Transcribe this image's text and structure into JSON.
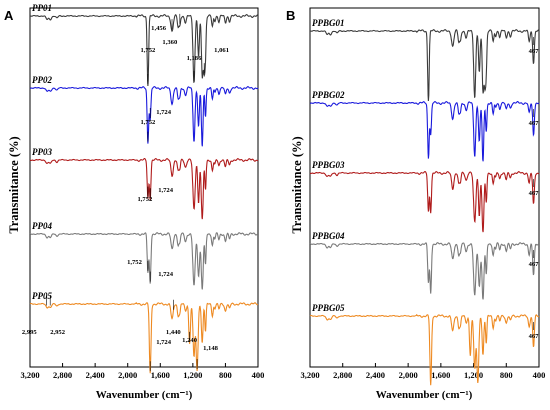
{
  "chart_data": [
    {
      "type": "line",
      "panel": "A",
      "xlabel": "Wavenumber (cm⁻¹)",
      "ylabel": "Transmitance (%)",
      "xlim": [
        3200,
        400
      ],
      "x_reversed": true,
      "x_ticks": [
        "3,200",
        "2,800",
        "2,400",
        "2,000",
        "1,600",
        "1,200",
        "800",
        "400"
      ],
      "grid": false,
      "series": [
        {
          "name": "PP01",
          "color": "#3a3a3a",
          "annotations": [
            {
              "label": "1,456",
              "x": 1456
            },
            {
              "label": "1,360",
              "x": 1360
            },
            {
              "label": "1,752",
              "x": 1752
            },
            {
              "label": "1,186",
              "x": 1186
            },
            {
              "label": "1,061",
              "x": 1061
            }
          ]
        },
        {
          "name": "PP02",
          "color": "#1a1adc",
          "annotations": [
            {
              "label": "1,724",
              "x": 1724
            },
            {
              "label": "1,752",
              "x": 1752
            }
          ]
        },
        {
          "name": "PP03",
          "color": "#b01c1c",
          "annotations": [
            {
              "label": "1,724",
              "x": 1724
            },
            {
              "label": "1,752",
              "x": 1752
            }
          ]
        },
        {
          "name": "PP04",
          "color": "#7a7a7a",
          "annotations": [
            {
              "label": "1,752",
              "x": 1752
            },
            {
              "label": "1,724",
              "x": 1724
            }
          ]
        },
        {
          "name": "PP05",
          "color": "#ee8a22",
          "annotations": [
            {
              "label": "2,995",
              "x": 2995
            },
            {
              "label": "2,952",
              "x": 2952
            },
            {
              "label": "1,440",
              "x": 1440
            },
            {
              "label": "1,240",
              "x": 1240
            },
            {
              "label": "1,724",
              "x": 1724
            },
            {
              "label": "1,148",
              "x": 1148
            }
          ]
        }
      ]
    },
    {
      "type": "line",
      "panel": "B",
      "xlabel": "Wavenumber (cm⁻¹)",
      "ylabel": "Transmitance (%)",
      "xlim": [
        3200,
        400
      ],
      "x_reversed": true,
      "x_ticks": [
        "3,200",
        "2,800",
        "2,400",
        "2,000",
        "1,600",
        "1,200",
        "800",
        "400"
      ],
      "grid": false,
      "series": [
        {
          "name": "PPBG01",
          "color": "#3a3a3a",
          "annotations": [
            {
              "label": "467",
              "x": 467
            }
          ]
        },
        {
          "name": "PPBG02",
          "color": "#1a1adc",
          "annotations": [
            {
              "label": "467",
              "x": 467
            }
          ]
        },
        {
          "name": "PPBG03",
          "color": "#b01c1c",
          "annotations": [
            {
              "label": "467",
              "x": 467
            }
          ]
        },
        {
          "name": "PPBG04",
          "color": "#7a7a7a",
          "annotations": [
            {
              "label": "467",
              "x": 467
            }
          ]
        },
        {
          "name": "PPBG05",
          "color": "#ee8a22",
          "annotations": [
            {
              "label": "467",
              "x": 467
            }
          ]
        }
      ]
    }
  ]
}
